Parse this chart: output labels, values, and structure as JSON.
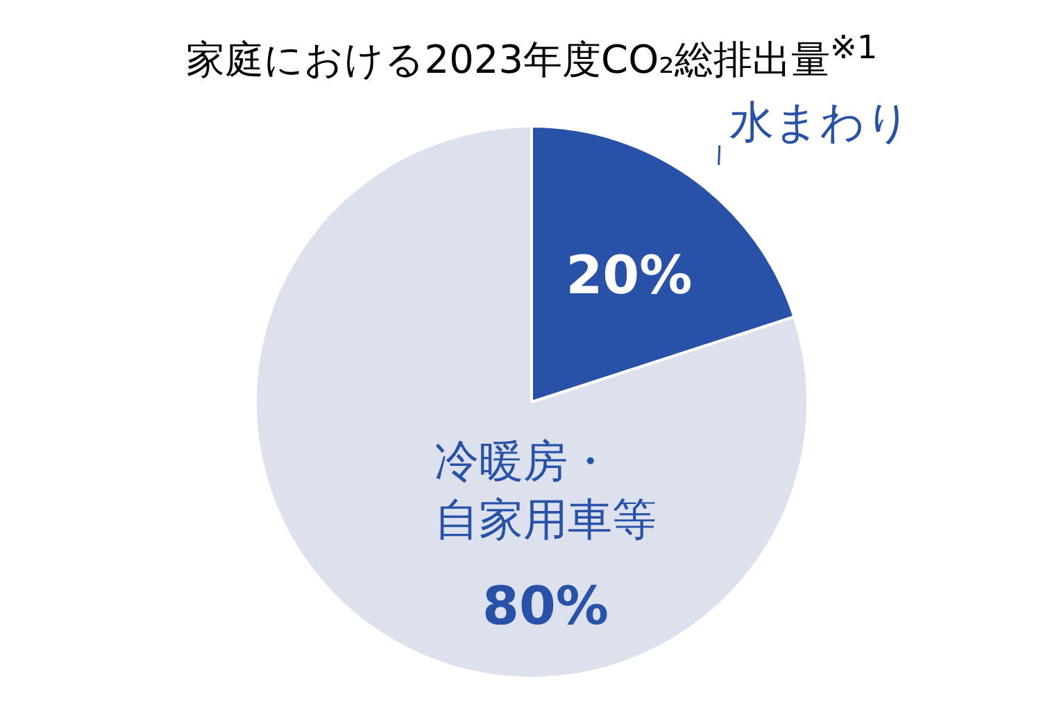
{
  "chart_data": {
    "type": "pie",
    "title": "家庭における2023年度CO₂総排出量$^{※1}$",
    "categories": [
      "水まわり",
      "冷暖房・自家用車等"
    ],
    "values": [
      20,
      80
    ],
    "colors": [
      "#2752a8",
      "#dde1ee"
    ],
    "value_labels": [
      "20%",
      "80%"
    ]
  }
}
